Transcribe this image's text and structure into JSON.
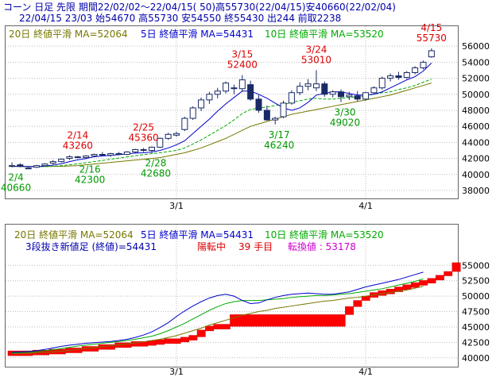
{
  "header": {
    "line1": "コーン 日足 先限 期間22/02/02～22/04/15( 50)高55730(22/04/15)安40660(22/02/04)",
    "line2": "22/04/15 23/03 始54670 高55730 安54550 終55430 出244 前取2238"
  },
  "colors": {
    "up_candle": "#ffffff",
    "down_candle": "#1a2a66",
    "ma5": "#0000cc",
    "ma10": "#00aa00",
    "ma20": "#777700",
    "high_label": "#dd0000",
    "low_label": "#009900",
    "brick_up": "#ff0000",
    "brick_down": "#ffffff",
    "flow_label": "#cc00cc"
  },
  "chart_data": [
    {
      "type": "candlestick",
      "legend": {
        "ma20": "20日 終値平滑 MA=52064",
        "ma5": "5日 終値平滑 MA=54431",
        "ma10": "10日 終値平滑 MA=53520"
      },
      "y_ticks": [
        38000,
        40000,
        42000,
        44000,
        46000,
        48000,
        50000,
        52000,
        54000,
        56000
      ],
      "y_tick_labels": [
        "38000",
        "40000",
        "42000",
        "44000",
        "46000",
        "48000",
        "50000",
        "52000",
        "54000",
        "56000"
      ],
      "ylim": [
        37800,
        57800
      ],
      "x_tick_labels": [
        {
          "label": "3/1",
          "at": 20
        },
        {
          "label": "4/1",
          "at": 43
        }
      ],
      "candles": [
        {
          "o": 41000,
          "h": 41500,
          "l": 40900,
          "c": 41100
        },
        {
          "o": 41200,
          "h": 41400,
          "l": 40900,
          "c": 41000
        },
        {
          "o": 40700,
          "h": 40900,
          "l": 40660,
          "c": 40800
        },
        {
          "o": 40900,
          "h": 41200,
          "l": 40800,
          "c": 41100
        },
        {
          "o": 41100,
          "h": 41400,
          "l": 41000,
          "c": 41300
        },
        {
          "o": 41400,
          "h": 41800,
          "l": 41200,
          "c": 41600
        },
        {
          "o": 41600,
          "h": 42000,
          "l": 41500,
          "c": 41900
        },
        {
          "o": 42000,
          "h": 42400,
          "l": 41800,
          "c": 42200
        },
        {
          "o": 42200,
          "h": 42300,
          "l": 42000,
          "c": 42100
        },
        {
          "o": 42100,
          "h": 42400,
          "l": 41900,
          "c": 42300
        },
        {
          "o": 42300,
          "h": 42600,
          "l": 42200,
          "c": 42500
        },
        {
          "o": 42500,
          "h": 42800,
          "l": 42300,
          "c": 42400
        },
        {
          "o": 42400,
          "h": 42700,
          "l": 42200,
          "c": 42600
        },
        {
          "o": 42600,
          "h": 42800,
          "l": 42400,
          "c": 42500
        },
        {
          "o": 42500,
          "h": 42900,
          "l": 42400,
          "c": 42800
        },
        {
          "o": 42800,
          "h": 43200,
          "l": 42700,
          "c": 43100
        },
        {
          "o": 43100,
          "h": 43300,
          "l": 42800,
          "c": 43000
        },
        {
          "o": 43000,
          "h": 43500,
          "l": 42680,
          "c": 43400
        },
        {
          "o": 43400,
          "h": 44600,
          "l": 43300,
          "c": 44500
        },
        {
          "o": 44500,
          "h": 45200,
          "l": 44300,
          "c": 45000
        },
        {
          "o": 44900,
          "h": 45300,
          "l": 44700,
          "c": 45100
        },
        {
          "o": 45600,
          "h": 47200,
          "l": 45400,
          "c": 47000
        },
        {
          "o": 47000,
          "h": 48500,
          "l": 46800,
          "c": 48300
        },
        {
          "o": 48300,
          "h": 49600,
          "l": 47900,
          "c": 49300
        },
        {
          "o": 49300,
          "h": 50300,
          "l": 48800,
          "c": 50000
        },
        {
          "o": 50000,
          "h": 50800,
          "l": 49500,
          "c": 50400
        },
        {
          "o": 50400,
          "h": 51600,
          "l": 50100,
          "c": 51400
        },
        {
          "o": 50800,
          "h": 51200,
          "l": 50000,
          "c": 50700
        },
        {
          "o": 50700,
          "h": 52400,
          "l": 50300,
          "c": 51800
        },
        {
          "o": 51200,
          "h": 51700,
          "l": 49200,
          "c": 49400
        },
        {
          "o": 49400,
          "h": 49900,
          "l": 47700,
          "c": 48000
        },
        {
          "o": 48000,
          "h": 48600,
          "l": 46700,
          "c": 46800
        },
        {
          "o": 46800,
          "h": 47200,
          "l": 46240,
          "c": 47000
        },
        {
          "o": 47200,
          "h": 49200,
          "l": 47000,
          "c": 48900
        },
        {
          "o": 48900,
          "h": 50500,
          "l": 48700,
          "c": 50200
        },
        {
          "o": 50200,
          "h": 51500,
          "l": 49900,
          "c": 51000
        },
        {
          "o": 51000,
          "h": 51900,
          "l": 50500,
          "c": 51300
        },
        {
          "o": 50800,
          "h": 53010,
          "l": 50400,
          "c": 51300
        },
        {
          "o": 51300,
          "h": 51600,
          "l": 49700,
          "c": 50000
        },
        {
          "o": 50000,
          "h": 50500,
          "l": 49600,
          "c": 50300
        },
        {
          "o": 50300,
          "h": 50600,
          "l": 49020,
          "c": 49700
        },
        {
          "o": 49700,
          "h": 50300,
          "l": 49300,
          "c": 49900
        },
        {
          "o": 49800,
          "h": 50400,
          "l": 49100,
          "c": 49400
        },
        {
          "o": 49400,
          "h": 50300,
          "l": 49200,
          "c": 50200
        },
        {
          "o": 50200,
          "h": 51000,
          "l": 50000,
          "c": 50800
        },
        {
          "o": 50800,
          "h": 52200,
          "l": 50600,
          "c": 52000
        },
        {
          "o": 52000,
          "h": 52600,
          "l": 51600,
          "c": 52300
        },
        {
          "o": 52300,
          "h": 52800,
          "l": 51800,
          "c": 52100
        },
        {
          "o": 52100,
          "h": 52900,
          "l": 51900,
          "c": 52700
        },
        {
          "o": 52700,
          "h": 53500,
          "l": 52500,
          "c": 53300
        },
        {
          "o": 53300,
          "h": 54200,
          "l": 53100,
          "c": 54000
        },
        {
          "o": 54670,
          "h": 55730,
          "l": 54550,
          "c": 55430
        }
      ],
      "ma5": [
        41000,
        41000,
        40980,
        40960,
        41060,
        41160,
        41340,
        41600,
        41820,
        41980,
        42200,
        42300,
        42380,
        42460,
        42560,
        42660,
        42700,
        42800,
        43000,
        43300,
        43700,
        44200,
        45100,
        46000,
        46900,
        47900,
        48800,
        49600,
        50400,
        50400,
        50000,
        49500,
        48900,
        48300,
        48000,
        48300,
        49000,
        49900,
        50100,
        50300,
        50300,
        50100,
        49900,
        49900,
        50000,
        50300,
        50800,
        51300,
        51800,
        52200,
        52900,
        53900
      ],
      "ma10": [
        41000,
        41000,
        40990,
        40980,
        40980,
        41020,
        41100,
        41200,
        41330,
        41460,
        41610,
        41740,
        41890,
        42040,
        42190,
        42330,
        42460,
        42590,
        42700,
        42850,
        43000,
        43300,
        43800,
        44300,
        44900,
        45500,
        46100,
        46800,
        47600,
        48100,
        48300,
        48400,
        48600,
        48700,
        49000,
        49200,
        49400,
        49500,
        49400,
        49400,
        49500,
        49600,
        49700,
        49800,
        50000,
        50200,
        50300,
        50600,
        50800,
        51100,
        51500,
        51900
      ],
      "ma20": [
        41000,
        41000,
        41000,
        41000,
        41000,
        41000,
        41000,
        41050,
        41100,
        41200,
        41300,
        41400,
        41500,
        41600,
        41700,
        41800,
        41900,
        42000,
        42100,
        42300,
        42500,
        42700,
        43000,
        43300,
        43700,
        44100,
        44500,
        45000,
        45500,
        46000,
        46300,
        46600,
        46900,
        47200,
        47500,
        47700,
        47900,
        48100,
        48300,
        48500,
        48700,
        48900,
        49100,
        49300,
        49500,
        49700,
        49900,
        50200,
        50500,
        50800,
        51100,
        51400
      ],
      "annotations": [
        {
          "i": 0,
          "kind": "low",
          "date": "2/4",
          "value": "40660"
        },
        {
          "i": 8,
          "kind": "high",
          "date": "2/14",
          "value": "43260"
        },
        {
          "i": 9,
          "kind": "low",
          "date": "2/16",
          "value": "42300"
        },
        {
          "i": 16,
          "kind": "high",
          "date": "2/25",
          "value": "45360"
        },
        {
          "i": 17,
          "kind": "low",
          "date": "2/28",
          "value": "42680"
        },
        {
          "i": 28,
          "kind": "high",
          "date": "3/15",
          "value": "52400"
        },
        {
          "i": 32,
          "kind": "low",
          "date": "3/17",
          "value": "46240"
        },
        {
          "i": 37,
          "kind": "high",
          "date": "3/24",
          "value": "53010"
        },
        {
          "i": 40,
          "kind": "low",
          "date": "3/30",
          "value": "49020"
        },
        {
          "i": 51,
          "kind": "high",
          "date": "4/15",
          "value": "55730"
        }
      ]
    },
    {
      "type": "renko",
      "legend": {
        "ma20": "20日 終値平滑 MA=52064",
        "ma5": "5日 終値平滑 MA=54431",
        "ma10": "10日 終値平滑 MA=53520"
      },
      "info": {
        "main": "3段抜き新値足 (終値)=54431",
        "status": "陽転中",
        "count": "39 手目",
        "flow": "転換値 : 53178"
      },
      "y_ticks": [
        40000,
        42500,
        45000,
        47500,
        50000,
        52500,
        55000
      ],
      "y_tick_labels": [
        "40000",
        "42500",
        "45000",
        "47500",
        "50000",
        "52500",
        "55000"
      ],
      "ylim": [
        39200,
        57100
      ],
      "x_tick_labels": [
        {
          "label": "3/1",
          "at": 20
        },
        {
          "label": "4/1",
          "at": 43
        }
      ],
      "bricks": [
        {
          "lo": 40660,
          "hi": 40800
        },
        {
          "lo": 40800,
          "hi": 40900
        },
        {
          "lo": 40900,
          "hi": 41100
        },
        {
          "lo": 41100,
          "hi": 41300
        },
        {
          "lo": 41300,
          "hi": 41600
        },
        {
          "lo": 41600,
          "hi": 41900
        },
        {
          "lo": 41900,
          "hi": 42200
        },
        {
          "lo": 42200,
          "hi": 42300
        },
        {
          "lo": 42300,
          "hi": 42500
        },
        {
          "lo": 42500,
          "hi": 42600
        },
        {
          "lo": 42600,
          "hi": 42800
        },
        {
          "lo": 42800,
          "hi": 43100
        },
        {
          "lo": 43100,
          "hi": 43400
        },
        {
          "lo": 43400,
          "hi": 44500
        },
        {
          "lo": 44500,
          "hi": 45000
        },
        {
          "lo": 45000,
          "hi": 45100
        },
        {
          "lo": 45100,
          "hi": 47000
        },
        {
          "lo": 47000,
          "hi": 48300
        },
        {
          "lo": 48300,
          "hi": 49300
        },
        {
          "lo": 49300,
          "hi": 50000
        },
        {
          "lo": 50000,
          "hi": 50400
        },
        {
          "lo": 50400,
          "hi": 50600
        },
        {
          "lo": 50600,
          "hi": 50900
        },
        {
          "lo": 50900,
          "hi": 51300
        },
        {
          "lo": 51300,
          "hi": 51600
        },
        {
          "lo": 51600,
          "hi": 52000
        },
        {
          "lo": 52000,
          "hi": 52300
        },
        {
          "lo": 52300,
          "hi": 52700
        },
        {
          "lo": 52700,
          "hi": 53300
        },
        {
          "lo": 53300,
          "hi": 54000
        },
        {
          "lo": 54000,
          "hi": 55430
        }
      ],
      "brick_starts": [
        0,
        3,
        5,
        7,
        9,
        11,
        13,
        15,
        17,
        18,
        19,
        21,
        22,
        23,
        24,
        25,
        27,
        41,
        42,
        43,
        44,
        45,
        46,
        47,
        48,
        49,
        50,
        51,
        52,
        53,
        54
      ],
      "ma5": [
        40900,
        40950,
        41000,
        41150,
        41350,
        41600,
        41850,
        42050,
        42200,
        42350,
        42450,
        42550,
        42650,
        42800,
        43000,
        43300,
        43700,
        44200,
        44900,
        45700,
        46700,
        47600,
        48400,
        49100,
        49700,
        50100,
        50300,
        50000,
        49300,
        48800,
        48900,
        49400,
        49800,
        50100,
        50300,
        50400,
        50500,
        50400,
        50300,
        50300,
        50500,
        50700,
        51100,
        51500,
        51800,
        52100,
        52400,
        52700,
        53100,
        53500,
        53900
      ],
      "ma10": [
        40800,
        40850,
        40900,
        41000,
        41150,
        41300,
        41500,
        41700,
        41900,
        42050,
        42200,
        42350,
        42500,
        42650,
        42800,
        43000,
        43250,
        43500,
        43900,
        44400,
        45000,
        45600,
        46300,
        47000,
        47700,
        48300,
        48800,
        49100,
        49300,
        49300,
        49300,
        49400,
        49500,
        49600,
        49800,
        49900,
        50000,
        50100,
        50100,
        50200,
        50300,
        50400,
        50600,
        50800,
        51000,
        51200,
        51500,
        51800,
        52100,
        52400,
        52800
      ],
      "ma20": [
        40700,
        40720,
        40750,
        40800,
        40850,
        40950,
        41050,
        41200,
        41350,
        41500,
        41650,
        41800,
        41950,
        42100,
        42250,
        42400,
        42600,
        42800,
        43000,
        43300,
        43600,
        44000,
        44400,
        44800,
        45300,
        45700,
        46100,
        46500,
        46900,
        47200,
        47500,
        47700,
        48000,
        48200,
        48400,
        48600,
        48800,
        49000,
        49200,
        49300,
        49500,
        49700,
        49800,
        50000,
        50200,
        50400,
        50600,
        50800,
        51000,
        51300,
        51600
      ]
    }
  ]
}
